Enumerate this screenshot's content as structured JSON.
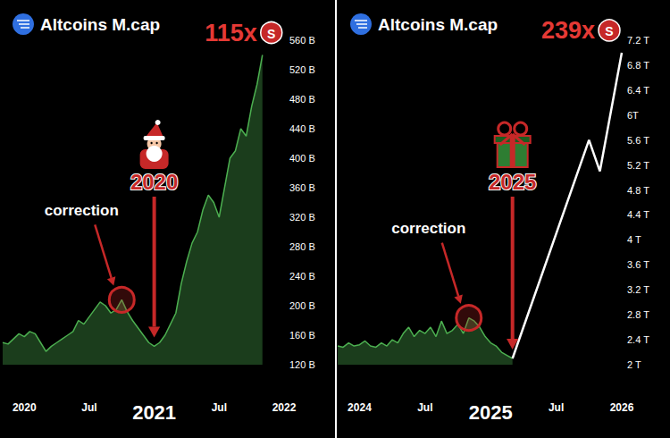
{
  "chart_data": [
    {
      "type": "area",
      "title": "Altcoins M.cap",
      "categories": [
        null,
        null,
        null,
        null,
        "2020",
        null,
        null,
        null,
        null,
        null,
        null,
        null,
        null,
        null,
        null,
        null,
        "Jul",
        null,
        null,
        null,
        null,
        null,
        null,
        null,
        null,
        null,
        null,
        null,
        "2021",
        null,
        null,
        null,
        null,
        null,
        null,
        null,
        null,
        null,
        null,
        null,
        "Jul",
        null,
        null,
        null,
        null,
        null,
        null,
        null,
        null,
        null,
        null,
        null,
        "2022"
      ],
      "series": [
        {
          "color": "#4caf50",
          "values": [
            150,
            148,
            155,
            162,
            158,
            165,
            162,
            150,
            138,
            145,
            150,
            155,
            160,
            165,
            180,
            175,
            185,
            195,
            205,
            200,
            190,
            195,
            208,
            192,
            180,
            170,
            160,
            150,
            145,
            150,
            160,
            175,
            190,
            230,
            260,
            285,
            300,
            330,
            350,
            340,
            320,
            360,
            400,
            410,
            440,
            430,
            470,
            500,
            540,
            null,
            null,
            null,
            null
          ]
        }
      ],
      "ylim": [
        120,
        560
      ],
      "yticks": [
        {
          "value": 120,
          "label": "120 B"
        },
        {
          "value": 160,
          "label": "160 B"
        },
        {
          "value": 200,
          "label": "200 B"
        },
        {
          "value": 240,
          "label": "240 B"
        },
        {
          "value": 280,
          "label": "280 B"
        },
        {
          "value": 320,
          "label": "320 B"
        },
        {
          "value": 360,
          "label": "360 B"
        },
        {
          "value": 400,
          "label": "400 B"
        },
        {
          "value": 440,
          "label": "440 B"
        },
        {
          "value": 480,
          "label": "480 B"
        },
        {
          "value": 520,
          "label": "520 B"
        },
        {
          "value": 560,
          "label": "560 B"
        }
      ],
      "grid": false,
      "annotations": {
        "multiple": "115x",
        "badge": "S",
        "year": "2020",
        "label": "correction"
      }
    },
    {
      "type": "area",
      "title": "Altcoins M.cap",
      "categories": [
        null,
        null,
        null,
        null,
        "2024",
        null,
        null,
        null,
        null,
        null,
        null,
        null,
        null,
        null,
        null,
        null,
        "Jul",
        null,
        null,
        null,
        null,
        null,
        null,
        null,
        null,
        null,
        null,
        null,
        "2025",
        null,
        null,
        null,
        null,
        null,
        null,
        null,
        null,
        null,
        null,
        null,
        "Jul",
        null,
        null,
        null,
        null,
        null,
        null,
        null,
        null,
        null,
        null,
        null,
        "2026"
      ],
      "series": [
        {
          "color": "#4caf50",
          "values": [
            2.3,
            2.28,
            2.35,
            2.3,
            2.32,
            2.38,
            2.3,
            2.28,
            2.35,
            2.3,
            2.4,
            2.35,
            2.5,
            2.6,
            2.45,
            2.55,
            2.5,
            2.6,
            2.45,
            2.7,
            2.5,
            2.55,
            2.65,
            2.5,
            2.75,
            2.7,
            2.6,
            2.45,
            2.35,
            2.3,
            2.2,
            2.15,
            2.1,
            null,
            null,
            null,
            null,
            null,
            null,
            null,
            null,
            null,
            null,
            null,
            null,
            null,
            null,
            null,
            null,
            null,
            null,
            null,
            null
          ]
        },
        {
          "type": "line",
          "color": "#ffffff",
          "values": [
            null,
            null,
            null,
            null,
            null,
            null,
            null,
            null,
            null,
            null,
            null,
            null,
            null,
            null,
            null,
            null,
            null,
            null,
            null,
            null,
            null,
            null,
            null,
            null,
            null,
            null,
            null,
            null,
            null,
            null,
            null,
            null,
            2.1,
            null,
            null,
            null,
            null,
            null,
            null,
            null,
            null,
            null,
            null,
            null,
            null,
            null,
            5.6,
            null,
            5.1,
            null,
            null,
            null,
            7.0
          ]
        }
      ],
      "ylim": [
        2,
        7.2
      ],
      "yticks": [
        {
          "value": 2,
          "label": "2 T"
        },
        {
          "value": 2.4,
          "label": "2.4 T"
        },
        {
          "value": 2.8,
          "label": "2.8 T"
        },
        {
          "value": 3.2,
          "label": "3.2 T"
        },
        {
          "value": 3.6,
          "label": "3.6 T"
        },
        {
          "value": 4,
          "label": "4 T"
        },
        {
          "value": 4.4,
          "label": "4.4 T"
        },
        {
          "value": 4.8,
          "label": "4.8 T"
        },
        {
          "value": 5.2,
          "label": "5.2 T"
        },
        {
          "value": 5.6,
          "label": "5.6 T"
        },
        {
          "value": 6,
          "label": "6T"
        },
        {
          "value": 6.4,
          "label": "6.4 T"
        },
        {
          "value": 6.8,
          "label": "6.8 T"
        },
        {
          "value": 7.2,
          "label": "7.2 T"
        }
      ],
      "grid": false,
      "annotations": {
        "multiple": "239x",
        "badge": "S",
        "year": "2025",
        "label": "correction"
      }
    }
  ]
}
